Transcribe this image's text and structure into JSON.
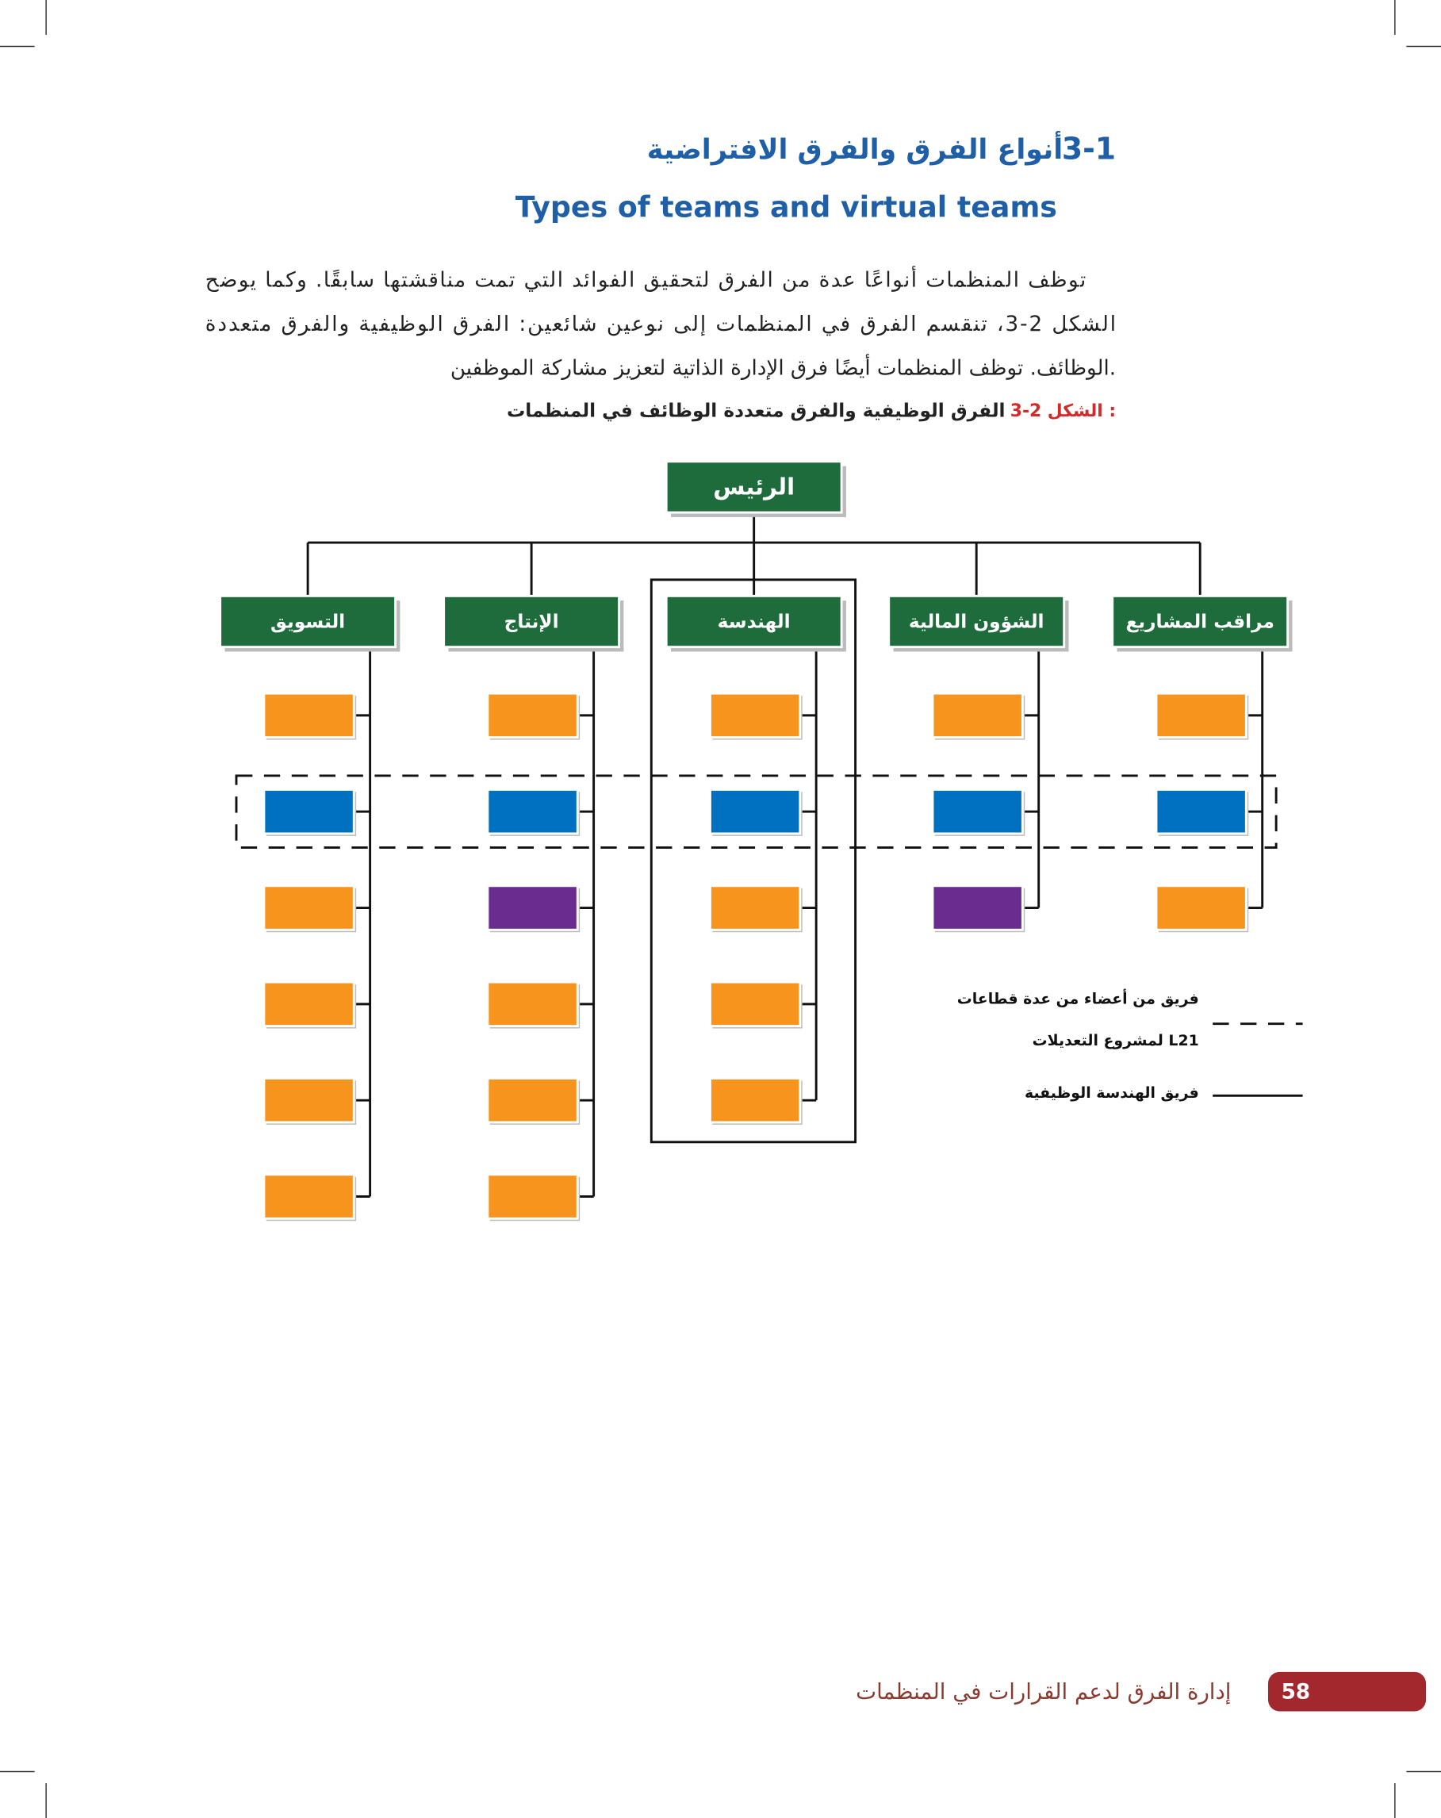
{
  "header": {
    "number": "3-1",
    "title_ar": "أنواع الفرق والفرق الافتراضية",
    "title_en": "Types of teams and virtual teams"
  },
  "paragraph": [
    "توظف المنظمات أنواعًا عدة من الفرق لتحقيق الفوائد التي تمت مناقشتها سابقًا. وكما يوضح",
    "الشكل 2-3، تنقسم الفرق في المنظمات إلى نوعين شائعين: الفرق الوظيفية والفرق متعددة",
    "الوظائف. توظف المنظمات أيضًا فرق الإدارة الذاتية لتعزيز مشاركة الموظفين."
  ],
  "figure": {
    "label": "الشكل 2-3 :",
    "caption": "الفرق الوظيفية والفرق متعددة الوظائف في المنظمات",
    "root": "الرئيس",
    "departments": [
      "مراقب المشاريع",
      "الشؤون المالية",
      "الهندسة",
      "الإنتاج",
      "التسويق"
    ],
    "legend": {
      "cross_team": [
        "فريق من أعضاء من عدة قطاعات",
        "لمشروع التعديلات L21"
      ],
      "functional_team": "فريق الهندسة الوظيفية"
    }
  },
  "footer": {
    "page": "58",
    "title": "إدارة الفرق لدعم القرارات في المنظمات"
  }
}
